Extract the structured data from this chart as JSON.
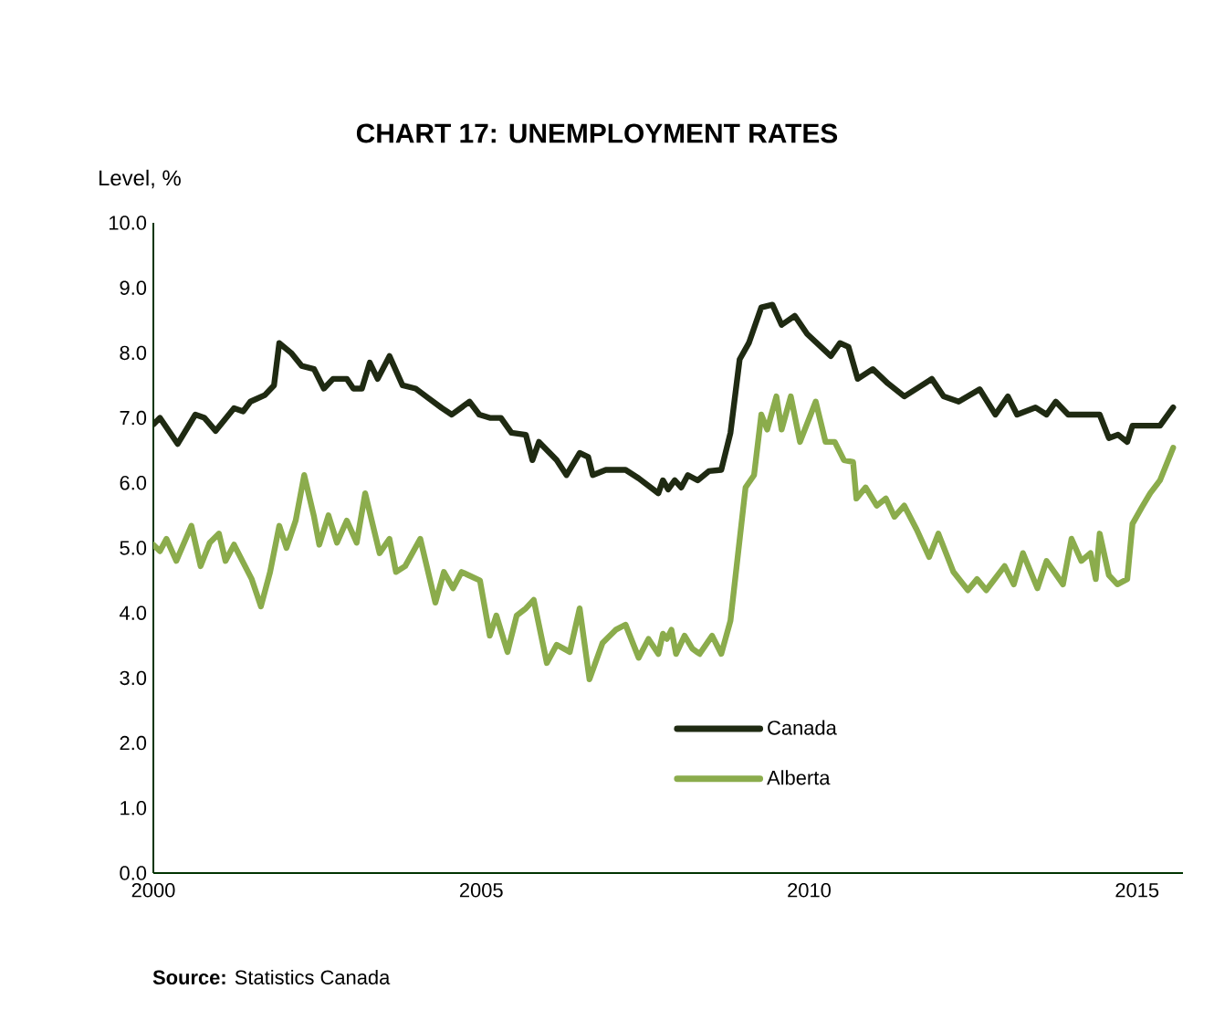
{
  "chart_data": {
    "type": "line",
    "title": "CHART 17: UNEMPLOYMENT RATES",
    "ylabel": "Level, %",
    "annotations": [
      "**Source:** Statistics Canada"
    ],
    "xlim": [
      2000,
      2015.7
    ],
    "xticks": [
      2000,
      2005,
      2010,
      2015
    ],
    "ylim": [
      0,
      10
    ],
    "yticks": [
      {
        "value": 0,
        "label": "0.0"
      },
      {
        "value": 1,
        "label": "1.0"
      },
      {
        "value": 2,
        "label": "2.0"
      },
      {
        "value": 3,
        "label": "3.0"
      },
      {
        "value": 4,
        "label": "4.0"
      },
      {
        "value": 5,
        "label": "5.0"
      },
      {
        "value": 6,
        "label": "6.0"
      },
      {
        "value": 7,
        "label": "7.0"
      },
      {
        "value": 8,
        "label": "8.0"
      },
      {
        "value": 9,
        "label": "9.0"
      },
      {
        "value": 10,
        "label": "10.0"
      }
    ],
    "grid": false,
    "legend": "bottom",
    "line_style": "solid",
    "series": [
      {
        "name": "Canada",
        "color": "#1f2a12",
        "x": [
          2000.0,
          2000.1,
          2000.37,
          2000.64,
          2000.78,
          2000.95,
          2001.23,
          2001.37,
          2001.48,
          2001.7,
          2001.84,
          2001.92,
          2002.1,
          2002.26,
          2002.45,
          2002.6,
          2002.74,
          2002.95,
          2003.05,
          2003.18,
          2003.3,
          2003.42,
          2003.6,
          2003.8,
          2004.0,
          2004.2,
          2004.4,
          2004.55,
          2004.82,
          2004.97,
          2005.13,
          2005.3,
          2005.46,
          2005.68,
          2005.78,
          2005.88,
          2006.15,
          2006.3,
          2006.5,
          2006.63,
          2006.7,
          2006.9,
          2007.2,
          2007.4,
          2007.7,
          2007.77,
          2007.85,
          2007.95,
          2008.05,
          2008.15,
          2008.3,
          2008.47,
          2008.66,
          2008.8,
          2008.94,
          2009.08,
          2009.27,
          2009.44,
          2009.58,
          2009.78,
          2009.97,
          2010.33,
          2010.47,
          2010.6,
          2010.74,
          2010.97,
          2011.2,
          2011.45,
          2011.67,
          2011.87,
          2012.05,
          2012.28,
          2012.6,
          2012.84,
          2013.03,
          2013.17,
          2013.45,
          2013.62,
          2013.76,
          2013.95,
          2014.43,
          2014.57,
          2014.71,
          2014.85,
          2014.93,
          2015.35,
          2015.55
        ],
        "values": [
          6.9,
          7.0,
          6.6,
          7.05,
          7.0,
          6.8,
          7.15,
          7.1,
          7.25,
          7.35,
          7.5,
          8.15,
          8.0,
          7.8,
          7.75,
          7.45,
          7.6,
          7.6,
          7.45,
          7.45,
          7.85,
          7.6,
          7.95,
          7.5,
          7.45,
          7.3,
          7.15,
          7.05,
          7.25,
          7.05,
          7.0,
          7.0,
          6.77,
          6.74,
          6.35,
          6.63,
          6.35,
          6.12,
          6.46,
          6.4,
          6.12,
          6.2,
          6.2,
          6.07,
          5.84,
          6.04,
          5.9,
          6.04,
          5.93,
          6.12,
          6.04,
          6.18,
          6.2,
          6.77,
          7.9,
          8.15,
          8.7,
          8.74,
          8.43,
          8.57,
          8.29,
          7.95,
          8.15,
          8.09,
          7.6,
          7.75,
          7.53,
          7.33,
          7.47,
          7.6,
          7.33,
          7.25,
          7.44,
          7.05,
          7.33,
          7.05,
          7.16,
          7.05,
          7.25,
          7.05,
          7.05,
          6.69,
          6.74,
          6.63,
          6.88,
          6.88,
          7.16
        ]
      },
      {
        "name": "Alberta",
        "color": "#8bac4c",
        "x": [
          2000.0,
          2000.1,
          2000.2,
          2000.35,
          2000.58,
          2000.72,
          2000.86,
          2001.0,
          2001.1,
          2001.23,
          2001.5,
          2001.64,
          2001.78,
          2001.92,
          2002.03,
          2002.17,
          2002.3,
          2002.45,
          2002.53,
          2002.67,
          2002.8,
          2002.95,
          2003.1,
          2003.23,
          2003.45,
          2003.6,
          2003.7,
          2003.84,
          2004.07,
          2004.3,
          2004.43,
          2004.57,
          2004.7,
          2004.98,
          2005.13,
          2005.23,
          2005.4,
          2005.54,
          2005.68,
          2005.8,
          2006.0,
          2006.15,
          2006.35,
          2006.5,
          2006.65,
          2006.85,
          2007.05,
          2007.2,
          2007.4,
          2007.55,
          2007.7,
          2007.77,
          2007.83,
          2007.9,
          2007.97,
          2008.1,
          2008.22,
          2008.33,
          2008.52,
          2008.66,
          2008.8,
          2009.03,
          2009.16,
          2009.27,
          2009.36,
          2009.5,
          2009.58,
          2009.72,
          2009.86,
          2010.1,
          2010.25,
          2010.39,
          2010.53,
          2010.67,
          2010.72,
          2010.86,
          2011.03,
          2011.17,
          2011.3,
          2011.45,
          2011.64,
          2011.83,
          2011.97,
          2012.2,
          2012.42,
          2012.56,
          2012.7,
          2012.98,
          2013.12,
          2013.26,
          2013.48,
          2013.62,
          2013.87,
          2014.0,
          2014.15,
          2014.29,
          2014.37,
          2014.43,
          2014.57,
          2014.7,
          2014.85,
          2014.93,
          2015.07,
          2015.2,
          2015.35,
          2015.55
        ],
        "values": [
          5.05,
          4.95,
          5.14,
          4.8,
          5.34,
          4.72,
          5.08,
          5.22,
          4.8,
          5.05,
          4.52,
          4.1,
          4.63,
          5.34,
          5.0,
          5.42,
          6.12,
          5.48,
          5.05,
          5.5,
          5.08,
          5.42,
          5.08,
          5.84,
          4.92,
          5.14,
          4.63,
          4.72,
          5.14,
          4.16,
          4.63,
          4.38,
          4.63,
          4.5,
          3.65,
          3.96,
          3.4,
          3.96,
          4.07,
          4.2,
          3.23,
          3.51,
          3.4,
          4.07,
          2.98,
          3.54,
          3.74,
          3.82,
          3.31,
          3.6,
          3.37,
          3.68,
          3.6,
          3.74,
          3.37,
          3.65,
          3.45,
          3.37,
          3.65,
          3.37,
          3.88,
          5.93,
          6.12,
          7.05,
          6.82,
          7.33,
          6.82,
          7.33,
          6.63,
          7.25,
          6.63,
          6.63,
          6.35,
          6.32,
          5.76,
          5.93,
          5.65,
          5.76,
          5.48,
          5.65,
          5.28,
          4.86,
          5.22,
          4.63,
          4.35,
          4.52,
          4.35,
          4.72,
          4.44,
          4.92,
          4.38,
          4.8,
          4.44,
          5.14,
          4.8,
          4.92,
          4.52,
          5.22,
          4.58,
          4.44,
          4.52,
          5.37,
          5.62,
          5.84,
          6.04,
          6.54
        ]
      }
    ]
  }
}
